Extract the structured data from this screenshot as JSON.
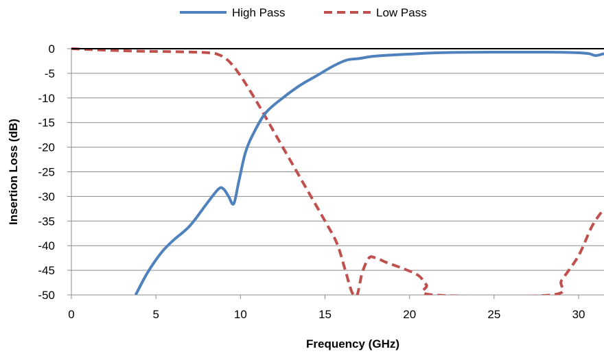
{
  "chart_data": {
    "type": "line",
    "title": "",
    "xlabel": "Frequency (GHz)",
    "ylabel": "Insertion Loss (dB)",
    "xlim": [
      0,
      31.5
    ],
    "ylim": [
      -50,
      0
    ],
    "x_ticks": [
      0,
      5,
      10,
      15,
      20,
      25,
      30
    ],
    "y_ticks": [
      0,
      -5,
      -10,
      -15,
      -20,
      -25,
      -30,
      -35,
      -40,
      -45,
      -50
    ],
    "grid": "horizontal",
    "legend_position": "top-center",
    "series": [
      {
        "name": "High Pass",
        "color": "#4f81bd",
        "style": "solid",
        "points": [
          [
            3.8,
            -50
          ],
          [
            4.5,
            -45.5
          ],
          [
            5.3,
            -41.5
          ],
          [
            6.0,
            -39
          ],
          [
            7.0,
            -36
          ],
          [
            8.0,
            -31.5
          ],
          [
            8.7,
            -28.5
          ],
          [
            9.0,
            -28.5
          ],
          [
            9.3,
            -30
          ],
          [
            9.6,
            -31.5
          ],
          [
            9.9,
            -27
          ],
          [
            10.3,
            -21
          ],
          [
            10.8,
            -17
          ],
          [
            11.5,
            -13
          ],
          [
            12.5,
            -10
          ],
          [
            13.5,
            -7.5
          ],
          [
            14.5,
            -5.5
          ],
          [
            15.5,
            -3.5
          ],
          [
            16.3,
            -2.3
          ],
          [
            17.0,
            -2.0
          ],
          [
            18.0,
            -1.5
          ],
          [
            20.0,
            -1.1
          ],
          [
            22.0,
            -0.8
          ],
          [
            25.0,
            -0.7
          ],
          [
            28.0,
            -0.7
          ],
          [
            29.8,
            -0.8
          ],
          [
            30.6,
            -1.0
          ],
          [
            31.0,
            -1.4
          ],
          [
            31.5,
            -1.0
          ]
        ]
      },
      {
        "name": "Low Pass",
        "color": "#c0504d",
        "style": "dashed",
        "points": [
          [
            0,
            0
          ],
          [
            2.0,
            -0.3
          ],
          [
            4.0,
            -0.5
          ],
          [
            6.0,
            -0.6
          ],
          [
            8.0,
            -0.8
          ],
          [
            8.7,
            -1.2
          ],
          [
            9.3,
            -2.5
          ],
          [
            10.0,
            -5.5
          ],
          [
            11.0,
            -11
          ],
          [
            12.0,
            -17
          ],
          [
            13.0,
            -23
          ],
          [
            14.0,
            -29
          ],
          [
            15.0,
            -35
          ],
          [
            15.7,
            -39.5
          ],
          [
            16.2,
            -45
          ],
          [
            16.6,
            -49.5
          ],
          [
            16.9,
            -50
          ],
          [
            17.2,
            -45.5
          ],
          [
            17.6,
            -42.5
          ],
          [
            18.0,
            -42.5
          ],
          [
            18.7,
            -43.5
          ],
          [
            19.5,
            -44.5
          ],
          [
            20.5,
            -46
          ],
          [
            21.0,
            -48
          ],
          [
            21.4,
            -50
          ],
          [
            28.4,
            -50
          ],
          [
            29.0,
            -47
          ],
          [
            30.0,
            -42
          ],
          [
            30.8,
            -36
          ],
          [
            31.5,
            -32.5
          ]
        ]
      }
    ]
  }
}
